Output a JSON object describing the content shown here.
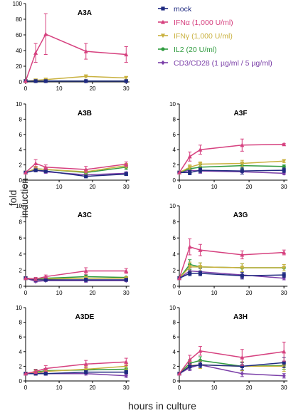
{
  "y_axis_label": "fold induction",
  "x_axis_label": "hours in culture",
  "legend": [
    {
      "label": "mock",
      "color": "#1f2a80",
      "marker": "square"
    },
    {
      "label": "IFNα (1,000 U/ml)",
      "color": "#d6417f",
      "marker": "triangle-up"
    },
    {
      "label": "IFNγ (1,000 U/ml)",
      "color": "#c9b13f",
      "marker": "triangle-down"
    },
    {
      "label": "IL2 (20 U/ml)",
      "color": "#2f9b3f",
      "marker": "circle"
    },
    {
      "label": "CD3/CD28 (1 µg/ml / 5 µg/ml)",
      "color": "#7b3fa8",
      "marker": "diamond"
    }
  ],
  "chart_data": [
    {
      "type": "line",
      "title": "A3A",
      "x": [
        0,
        3,
        6,
        18,
        30
      ],
      "xticks": [
        0,
        10,
        20,
        30
      ],
      "yticks": [
        0,
        20,
        40,
        60,
        80,
        100
      ],
      "xlim": [
        0,
        31
      ],
      "ylim": [
        0,
        100
      ],
      "series": [
        {
          "name": "mock",
          "values": [
            1,
            1,
            1,
            1,
            1
          ],
          "err": [
            0,
            0,
            0,
            0,
            0
          ]
        },
        {
          "name": "IFNα (1,000 U/ml)",
          "values": [
            1,
            37,
            61,
            39,
            35
          ],
          "err": [
            0,
            12,
            26,
            10,
            10
          ]
        },
        {
          "name": "IFNγ (1,000 U/ml)",
          "values": [
            1,
            2,
            3,
            7,
            5
          ],
          "err": [
            0,
            1,
            1,
            2,
            2
          ]
        },
        {
          "name": "IL2 (20 U/ml)",
          "values": [
            1,
            1,
            1,
            1,
            1
          ],
          "err": [
            0,
            0,
            0,
            0,
            0
          ]
        },
        {
          "name": "CD3/CD28 (1 µg/ml / 5 µg/ml)",
          "values": [
            1,
            1,
            1,
            1,
            1
          ],
          "err": [
            0,
            0,
            0,
            0,
            0
          ]
        }
      ]
    },
    {
      "type": "line",
      "title": "A3B",
      "x": [
        0,
        3,
        6,
        18,
        30
      ],
      "xticks": [
        0,
        10,
        20,
        30
      ],
      "yticks": [
        0,
        2,
        4,
        6,
        8,
        10
      ],
      "xlim": [
        0,
        31
      ],
      "ylim": [
        0,
        10
      ],
      "series": [
        {
          "name": "mock",
          "values": [
            1,
            1.3,
            1.2,
            0.5,
            0.8
          ],
          "err": [
            0,
            0.2,
            0.2,
            0.2,
            0.2
          ]
        },
        {
          "name": "IFNα (1,000 U/ml)",
          "values": [
            1,
            2.2,
            1.7,
            1.4,
            2.1
          ],
          "err": [
            0,
            0.5,
            0.3,
            0.4,
            0.3
          ]
        },
        {
          "name": "IFNγ (1,000 U/ml)",
          "values": [
            1,
            1.5,
            1.4,
            1.1,
            1.9
          ],
          "err": [
            0,
            0.3,
            0.3,
            0.3,
            0.3
          ]
        },
        {
          "name": "IL2 (20 U/ml)",
          "values": [
            1,
            1.5,
            1.4,
            1.0,
            1.7
          ],
          "err": [
            0,
            0.3,
            0.3,
            0.2,
            0.3
          ]
        },
        {
          "name": "CD3/CD28 (1 µg/ml / 5 µg/ml)",
          "values": [
            1,
            1.3,
            1.1,
            0.7,
            0.9
          ],
          "err": [
            0,
            0.2,
            0.2,
            0.2,
            0.2
          ]
        }
      ]
    },
    {
      "type": "line",
      "title": "A3F",
      "x": [
        0,
        3,
        6,
        18,
        30
      ],
      "xticks": [
        0,
        10,
        20,
        30
      ],
      "yticks": [
        0,
        2,
        4,
        6,
        8,
        10
      ],
      "xlim": [
        0,
        31
      ],
      "ylim": [
        0,
        10
      ],
      "series": [
        {
          "name": "mock",
          "values": [
            1,
            1.0,
            1.3,
            1.2,
            1.3
          ],
          "err": [
            0,
            0.3,
            0.3,
            0.4,
            0.3
          ]
        },
        {
          "name": "IFNα (1,000 U/ml)",
          "values": [
            1,
            3.1,
            4.0,
            4.6,
            4.7
          ],
          "err": [
            0,
            0.6,
            0.6,
            0.8,
            0.1
          ]
        },
        {
          "name": "IFNγ (1,000 U/ml)",
          "values": [
            1,
            1.7,
            2.1,
            2.2,
            2.5
          ],
          "err": [
            0,
            0.3,
            0.3,
            0.4,
            0.2
          ]
        },
        {
          "name": "IL2 (20 U/ml)",
          "values": [
            1,
            1.5,
            1.7,
            1.9,
            1.8
          ],
          "err": [
            0,
            0.3,
            0.3,
            0.4,
            0.2
          ]
        },
        {
          "name": "CD3/CD28 (1 µg/ml / 5 µg/ml)",
          "values": [
            1,
            1.3,
            1.2,
            1.1,
            0.9
          ],
          "err": [
            0,
            0.3,
            0.3,
            0.3,
            0.2
          ]
        }
      ]
    },
    {
      "type": "line",
      "title": "A3C",
      "x": [
        0,
        3,
        6,
        18,
        30
      ],
      "xticks": [
        0,
        10,
        20,
        30
      ],
      "yticks": [
        0,
        2,
        4,
        6,
        8,
        10
      ],
      "xlim": [
        0,
        31
      ],
      "ylim": [
        0,
        10
      ],
      "series": [
        {
          "name": "mock",
          "values": [
            1,
            0.8,
            0.8,
            0.8,
            0.8
          ],
          "err": [
            0,
            0.1,
            0.1,
            0.2,
            0.1
          ]
        },
        {
          "name": "IFNα (1,000 U/ml)",
          "values": [
            1,
            0.9,
            1.2,
            1.9,
            1.9
          ],
          "err": [
            0,
            0.2,
            0.2,
            0.4,
            0.3
          ]
        },
        {
          "name": "IFNγ (1,000 U/ml)",
          "values": [
            1,
            0.8,
            0.9,
            1.0,
            1.0
          ],
          "err": [
            0,
            0.1,
            0.1,
            0.2,
            0.1
          ]
        },
        {
          "name": "IL2 (20 U/ml)",
          "values": [
            1,
            0.9,
            1.0,
            1.2,
            1.1
          ],
          "err": [
            0,
            0.1,
            0.1,
            0.2,
            0.1
          ]
        },
        {
          "name": "CD3/CD28 (1 µg/ml / 5 µg/ml)",
          "values": [
            1,
            0.6,
            0.7,
            0.7,
            0.7
          ],
          "err": [
            0,
            0.1,
            0.1,
            0.2,
            0.1
          ]
        }
      ]
    },
    {
      "type": "line",
      "title": "A3G",
      "x": [
        0,
        3,
        6,
        18,
        30
      ],
      "xticks": [
        0,
        10,
        20,
        30
      ],
      "yticks": [
        0,
        2,
        4,
        6,
        8,
        10
      ],
      "xlim": [
        0,
        31
      ],
      "ylim": [
        0,
        10
      ],
      "series": [
        {
          "name": "mock",
          "values": [
            1,
            1.6,
            1.6,
            1.3,
            1.4
          ],
          "err": [
            0,
            0.3,
            0.3,
            0.4,
            0.3
          ]
        },
        {
          "name": "IFNα (1,000 U/ml)",
          "values": [
            1,
            4.9,
            4.5,
            3.9,
            4.2
          ],
          "err": [
            0,
            1.0,
            0.7,
            0.5,
            0.3
          ]
        },
        {
          "name": "IFNγ (1,000 U/ml)",
          "values": [
            1,
            2.4,
            2.4,
            2.3,
            2.3
          ],
          "err": [
            0,
            0.6,
            0.5,
            0.5,
            0.4
          ]
        },
        {
          "name": "IL2 (20 U/ml)",
          "values": [
            1,
            2.7,
            2.4,
            2.3,
            2.3
          ],
          "err": [
            0,
            0.6,
            0.5,
            0.5,
            0.4
          ]
        },
        {
          "name": "CD3/CD28 (1 µg/ml / 5 µg/ml)",
          "values": [
            1,
            1.9,
            1.8,
            1.4,
            1.0
          ],
          "err": [
            0,
            0.4,
            0.4,
            0.4,
            0.2
          ]
        }
      ]
    },
    {
      "type": "line",
      "title": "A3DE",
      "x": [
        0,
        3,
        6,
        18,
        30
      ],
      "xticks": [
        0,
        10,
        20,
        30
      ],
      "yticks": [
        0,
        2,
        4,
        6,
        8,
        10
      ],
      "xlim": [
        0,
        31
      ],
      "ylim": [
        0,
        10
      ],
      "series": [
        {
          "name": "mock",
          "values": [
            1,
            1.0,
            1.0,
            1.2,
            1.2
          ],
          "err": [
            0,
            0.2,
            0.2,
            0.2,
            0.2
          ]
        },
        {
          "name": "IFNα (1,000 U/ml)",
          "values": [
            1,
            1.3,
            1.7,
            2.3,
            2.6
          ],
          "err": [
            0,
            0.3,
            0.4,
            0.5,
            0.5
          ]
        },
        {
          "name": "IFNγ (1,000 U/ml)",
          "values": [
            1,
            1.1,
            1.3,
            1.6,
            2.0
          ],
          "err": [
            0,
            0.3,
            0.3,
            0.4,
            0.4
          ]
        },
        {
          "name": "IL2 (20 U/ml)",
          "values": [
            1,
            1.2,
            1.4,
            1.5,
            1.6
          ],
          "err": [
            0,
            0.3,
            0.3,
            0.3,
            0.3
          ]
        },
        {
          "name": "CD3/CD28 (1 µg/ml / 5 µg/ml)",
          "values": [
            1,
            1.2,
            1.0,
            1.0,
            0.7
          ],
          "err": [
            0,
            0.3,
            0.2,
            0.2,
            0.2
          ]
        }
      ]
    },
    {
      "type": "line",
      "title": "A3H",
      "x": [
        0,
        3,
        6,
        18,
        30
      ],
      "xticks": [
        0,
        10,
        20,
        30
      ],
      "yticks": [
        0,
        2,
        4,
        6,
        8,
        10
      ],
      "xlim": [
        0,
        31
      ],
      "ylim": [
        0,
        10
      ],
      "series": [
        {
          "name": "mock",
          "values": [
            1,
            2.0,
            2.2,
            2.0,
            2.5
          ],
          "err": [
            0,
            0.4,
            0.4,
            0.5,
            0.7
          ]
        },
        {
          "name": "IFNα (1,000 U/ml)",
          "values": [
            1,
            2.9,
            4.1,
            3.2,
            4.0
          ],
          "err": [
            0,
            0.6,
            0.6,
            1.1,
            1.3
          ]
        },
        {
          "name": "IFNγ (1,000 U/ml)",
          "values": [
            1,
            2.1,
            2.2,
            2.0,
            2.0
          ],
          "err": [
            0,
            0.5,
            0.5,
            0.6,
            0.7
          ]
        },
        {
          "name": "IL2 (20 U/ml)",
          "values": [
            1,
            2.4,
            2.8,
            2.0,
            2.1
          ],
          "err": [
            0,
            0.5,
            0.5,
            0.6,
            0.5
          ]
        },
        {
          "name": "CD3/CD28 (1 µg/ml / 5 µg/ml)",
          "values": [
            1,
            1.8,
            2.2,
            1.0,
            0.7
          ],
          "err": [
            0,
            0.4,
            0.4,
            0.4,
            0.3
          ]
        }
      ]
    }
  ]
}
